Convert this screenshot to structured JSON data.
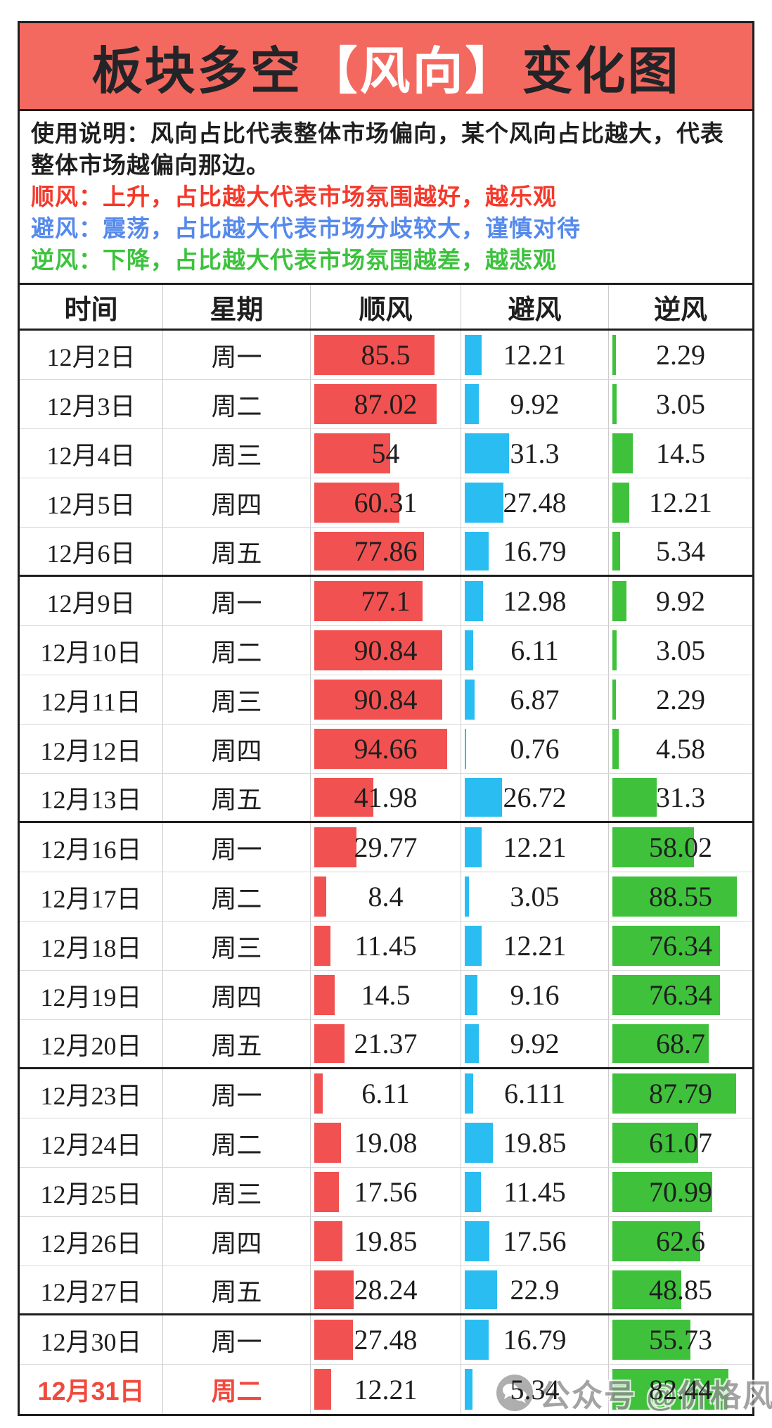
{
  "title": {
    "part1": "板块多空",
    "highlight": "【风向】",
    "part2": "变化图"
  },
  "usage": {
    "intro": "使用说明：风向占比代表整体市场偏向，某个风向占比越大，代表整体市场越偏向那边。",
    "legend": [
      {
        "text": "顺风：上升，占比越大代表市场氛围越好，越乐观",
        "color": "#f4392b"
      },
      {
        "text": "避风：震荡，占比越大代表市场分歧较大，谨慎对待",
        "color": "#5589ec"
      },
      {
        "text": "逆风：下降，占比越大代表市场氛围越差，越悲观",
        "color": "#3dc23d"
      }
    ]
  },
  "colors": {
    "banner_bg": "#f4695f",
    "shun_bar": "#f15150",
    "bi_bar": "#29bdf2",
    "ni_bar": "#3fc13c",
    "highlight_text": "#f04a3e"
  },
  "table": {
    "headers": [
      "时间",
      "星期",
      "顺风",
      "避风",
      "逆风"
    ],
    "rows": [
      {
        "date": "12月2日",
        "week": "周一",
        "shun": "85.5",
        "bi": "12.21",
        "ni": "2.29",
        "group_end": false,
        "highlight": false
      },
      {
        "date": "12月3日",
        "week": "周二",
        "shun": "87.02",
        "bi": "9.92",
        "ni": "3.05",
        "group_end": false,
        "highlight": false
      },
      {
        "date": "12月4日",
        "week": "周三",
        "shun": "54",
        "bi": "31.3",
        "ni": "14.5",
        "group_end": false,
        "highlight": false
      },
      {
        "date": "12月5日",
        "week": "周四",
        "shun": "60.31",
        "bi": "27.48",
        "ni": "12.21",
        "group_end": false,
        "highlight": false
      },
      {
        "date": "12月6日",
        "week": "周五",
        "shun": "77.86",
        "bi": "16.79",
        "ni": "5.34",
        "group_end": true,
        "highlight": false
      },
      {
        "date": "12月9日",
        "week": "周一",
        "shun": "77.1",
        "bi": "12.98",
        "ni": "9.92",
        "group_end": false,
        "highlight": false
      },
      {
        "date": "12月10日",
        "week": "周二",
        "shun": "90.84",
        "bi": "6.11",
        "ni": "3.05",
        "group_end": false,
        "highlight": false
      },
      {
        "date": "12月11日",
        "week": "周三",
        "shun": "90.84",
        "bi": "6.87",
        "ni": "2.29",
        "group_end": false,
        "highlight": false
      },
      {
        "date": "12月12日",
        "week": "周四",
        "shun": "94.66",
        "bi": "0.76",
        "ni": "4.58",
        "group_end": false,
        "highlight": false
      },
      {
        "date": "12月13日",
        "week": "周五",
        "shun": "41.98",
        "bi": "26.72",
        "ni": "31.3",
        "group_end": true,
        "highlight": false
      },
      {
        "date": "12月16日",
        "week": "周一",
        "shun": "29.77",
        "bi": "12.21",
        "ni": "58.02",
        "group_end": false,
        "highlight": false
      },
      {
        "date": "12月17日",
        "week": "周二",
        "shun": "8.4",
        "bi": "3.05",
        "ni": "88.55",
        "group_end": false,
        "highlight": false
      },
      {
        "date": "12月18日",
        "week": "周三",
        "shun": "11.45",
        "bi": "12.21",
        "ni": "76.34",
        "group_end": false,
        "highlight": false
      },
      {
        "date": "12月19日",
        "week": "周四",
        "shun": "14.5",
        "bi": "9.16",
        "ni": "76.34",
        "group_end": false,
        "highlight": false
      },
      {
        "date": "12月20日",
        "week": "周五",
        "shun": "21.37",
        "bi": "9.92",
        "ni": "68.7",
        "group_end": true,
        "highlight": false
      },
      {
        "date": "12月23日",
        "week": "周一",
        "shun": "6.11",
        "bi": "6.111",
        "ni": "87.79",
        "group_end": false,
        "highlight": false
      },
      {
        "date": "12月24日",
        "week": "周二",
        "shun": "19.08",
        "bi": "19.85",
        "ni": "61.07",
        "group_end": false,
        "highlight": false
      },
      {
        "date": "12月25日",
        "week": "周三",
        "shun": "17.56",
        "bi": "11.45",
        "ni": "70.99",
        "group_end": false,
        "highlight": false
      },
      {
        "date": "12月26日",
        "week": "周四",
        "shun": "19.85",
        "bi": "17.56",
        "ni": "62.6",
        "group_end": false,
        "highlight": false
      },
      {
        "date": "12月27日",
        "week": "周五",
        "shun": "28.24",
        "bi": "22.9",
        "ni": "48.85",
        "group_end": true,
        "highlight": false
      },
      {
        "date": "12月30日",
        "week": "周一",
        "shun": "27.48",
        "bi": "16.79",
        "ni": "55.73",
        "group_end": false,
        "highlight": false
      },
      {
        "date": "12月31日",
        "week": "周二",
        "shun": "12.21",
        "bi": "5.34",
        "ni": "82.44",
        "group_end": false,
        "highlight": true
      }
    ]
  },
  "watermark": {
    "icon": "wechat-icon",
    "text": "公众号 @价格风向跟踪"
  },
  "chart_data": {
    "type": "table",
    "title": "板块多空【风向】变化图",
    "columns": [
      "时间",
      "星期",
      "顺风",
      "避风",
      "逆风"
    ],
    "categories": [
      "12月2日",
      "12月3日",
      "12月4日",
      "12月5日",
      "12月6日",
      "12月9日",
      "12月10日",
      "12月11日",
      "12月12日",
      "12月13日",
      "12月16日",
      "12月17日",
      "12月18日",
      "12月19日",
      "12月20日",
      "12月23日",
      "12月24日",
      "12月25日",
      "12月26日",
      "12月27日",
      "12月30日",
      "12月31日"
    ],
    "weekdays": [
      "周一",
      "周二",
      "周三",
      "周四",
      "周五",
      "周一",
      "周二",
      "周三",
      "周四",
      "周五",
      "周一",
      "周二",
      "周三",
      "周四",
      "周五",
      "周一",
      "周二",
      "周三",
      "周四",
      "周五",
      "周一",
      "周二"
    ],
    "series": [
      {
        "name": "顺风",
        "color": "#f15150",
        "values": [
          85.5,
          87.02,
          54,
          60.31,
          77.86,
          77.1,
          90.84,
          90.84,
          94.66,
          41.98,
          29.77,
          8.4,
          11.45,
          14.5,
          21.37,
          6.11,
          19.08,
          17.56,
          19.85,
          28.24,
          27.48,
          12.21
        ]
      },
      {
        "name": "避风",
        "color": "#29bdf2",
        "values": [
          12.21,
          9.92,
          31.3,
          27.48,
          16.79,
          12.98,
          6.11,
          6.87,
          0.76,
          26.72,
          12.21,
          3.05,
          12.21,
          9.16,
          9.92,
          6.111,
          19.85,
          11.45,
          17.56,
          22.9,
          16.79,
          5.34
        ]
      },
      {
        "name": "逆风",
        "color": "#3fc13c",
        "values": [
          2.29,
          3.05,
          14.5,
          12.21,
          5.34,
          9.92,
          3.05,
          2.29,
          4.58,
          31.3,
          58.02,
          88.55,
          76.34,
          76.34,
          68.7,
          87.79,
          61.07,
          70.99,
          62.6,
          48.85,
          55.73,
          82.44
        ]
      }
    ],
    "value_range": [
      0,
      100
    ],
    "value_unit": "percent"
  }
}
